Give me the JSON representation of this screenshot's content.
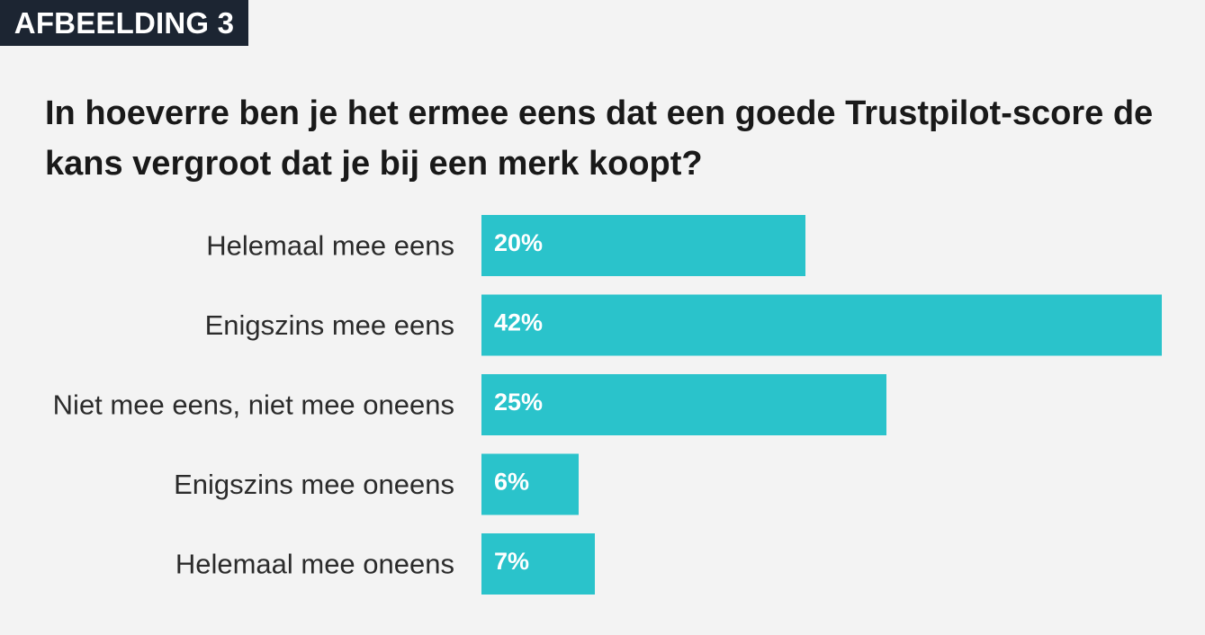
{
  "tag": "AFBEELDING 3",
  "chart_data": {
    "type": "bar",
    "orientation": "horizontal",
    "title": "In hoeverre ben je het ermee eens dat een goede Trustpilot-score de kans vergroot dat je bij een merk koopt?",
    "categories": [
      "Helemaal mee eens",
      "Enigszins mee eens",
      "Niet mee eens, niet mee oneens",
      "Enigszins mee oneens",
      "Helemaal mee oneens"
    ],
    "values": [
      20,
      42,
      25,
      6,
      7
    ],
    "value_labels": [
      "20%",
      "42%",
      "25%",
      "6%",
      "7%"
    ],
    "unit": "%",
    "xlim": [
      0,
      42
    ],
    "grid": false,
    "bar_color": "#2ac3cb"
  }
}
